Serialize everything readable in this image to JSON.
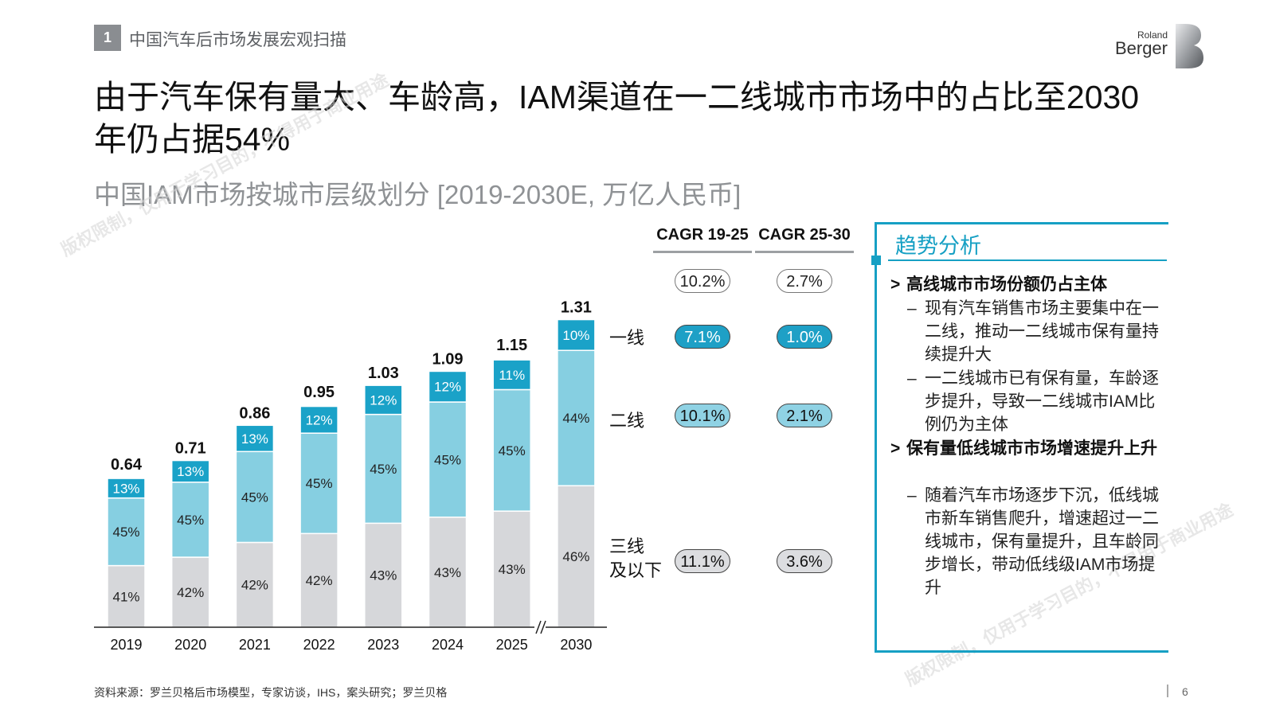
{
  "header": {
    "section_number": "1",
    "section_title": "中国汽车后市场发展宏观扫描",
    "logo_small": "Roland",
    "logo_big": "Berger"
  },
  "title": "由于汽车保有量大、车龄高，IAM渠道在一二线城市市场中的占比至2030年仍占据54%",
  "subtitle": "中国IAM市场按城市层级划分 [2019-2030E, 万亿人民币]",
  "chart_data": {
    "type": "bar",
    "stacked": true,
    "categories": [
      "2019",
      "2020",
      "2021",
      "2022",
      "2023",
      "2024",
      "2025",
      "2030"
    ],
    "totals": [
      "0.64",
      "0.71",
      "0.86",
      "0.95",
      "1.03",
      "1.09",
      "1.15",
      "1.31"
    ],
    "total_values": [
      0.64,
      0.71,
      0.86,
      0.95,
      1.03,
      1.09,
      1.15,
      1.31
    ],
    "series": [
      {
        "name": "三线及以下",
        "color": "#d6d7da",
        "shares": [
          41,
          42,
          42,
          42,
          43,
          43,
          43,
          46
        ],
        "labels": [
          "41%",
          "42%",
          "42%",
          "42%",
          "43%",
          "43%",
          "43%",
          "46%"
        ]
      },
      {
        "name": "二线",
        "color": "#86cfe1",
        "shares": [
          45,
          45,
          45,
          45,
          45,
          45,
          45,
          44
        ],
        "labels": [
          "45%",
          "45%",
          "45%",
          "45%",
          "45%",
          "45%",
          "45%",
          "44%"
        ]
      },
      {
        "name": "一线",
        "color": "#1aa2c8",
        "shares": [
          13,
          13,
          13,
          12,
          12,
          12,
          11,
          10
        ],
        "labels": [
          "13%",
          "13%",
          "13%",
          "12%",
          "12%",
          "12%",
          "11%",
          "10%"
        ]
      }
    ],
    "axis_break_between": [
      "2025",
      "2030"
    ],
    "ylabel": "万亿人民币"
  },
  "tiers": {
    "tier1": "一线",
    "tier2": "二线",
    "tier3_line1": "三线",
    "tier3_line2": "及以下"
  },
  "cagr": {
    "head1": "CAGR 19-25",
    "head2": "CAGR 25-30",
    "total": [
      "10.2%",
      "2.7%"
    ],
    "tier1": [
      "7.1%",
      "1.0%"
    ],
    "tier2": [
      "10.1%",
      "2.1%"
    ],
    "tier3": [
      "11.1%",
      "3.6%"
    ]
  },
  "colors": {
    "accent": "#16a0c4",
    "tier1": "#1aa2c8",
    "tier2": "#86cfe1",
    "tier3": "#d6d7da"
  },
  "panel": {
    "title": "趋势分析",
    "b1": "高线城市市场份额仍占主体",
    "b1_sub1": "现有汽车销售市场主要集中在一二线，推动一二线城市保有量持续提升大",
    "b1_sub2": "一二线城市已有保有量，车龄逐步提升，导致一二线城市IAM比例仍为主体",
    "b2": "保有量低线城市市场增速提升上升",
    "b2_sub1": "随着汽车市场逐步下沉，低线城市新车销售爬升，增速超过一二线城市，保有量提升，且车龄同步增长，带动低线级IAM市场提升",
    "b_marker": ">",
    "sub_marker": "–"
  },
  "watermark": {
    "text1": "版权限制，仅用于学习目的，不得用于商业用途",
    "text2": "版权限制，仅用于学习目的，不得用于商业用途"
  },
  "footer": {
    "source": "资料来源：罗兰贝格后市场模型，专家访谈，IHS，案头研究；罗兰贝格",
    "page": "6"
  }
}
